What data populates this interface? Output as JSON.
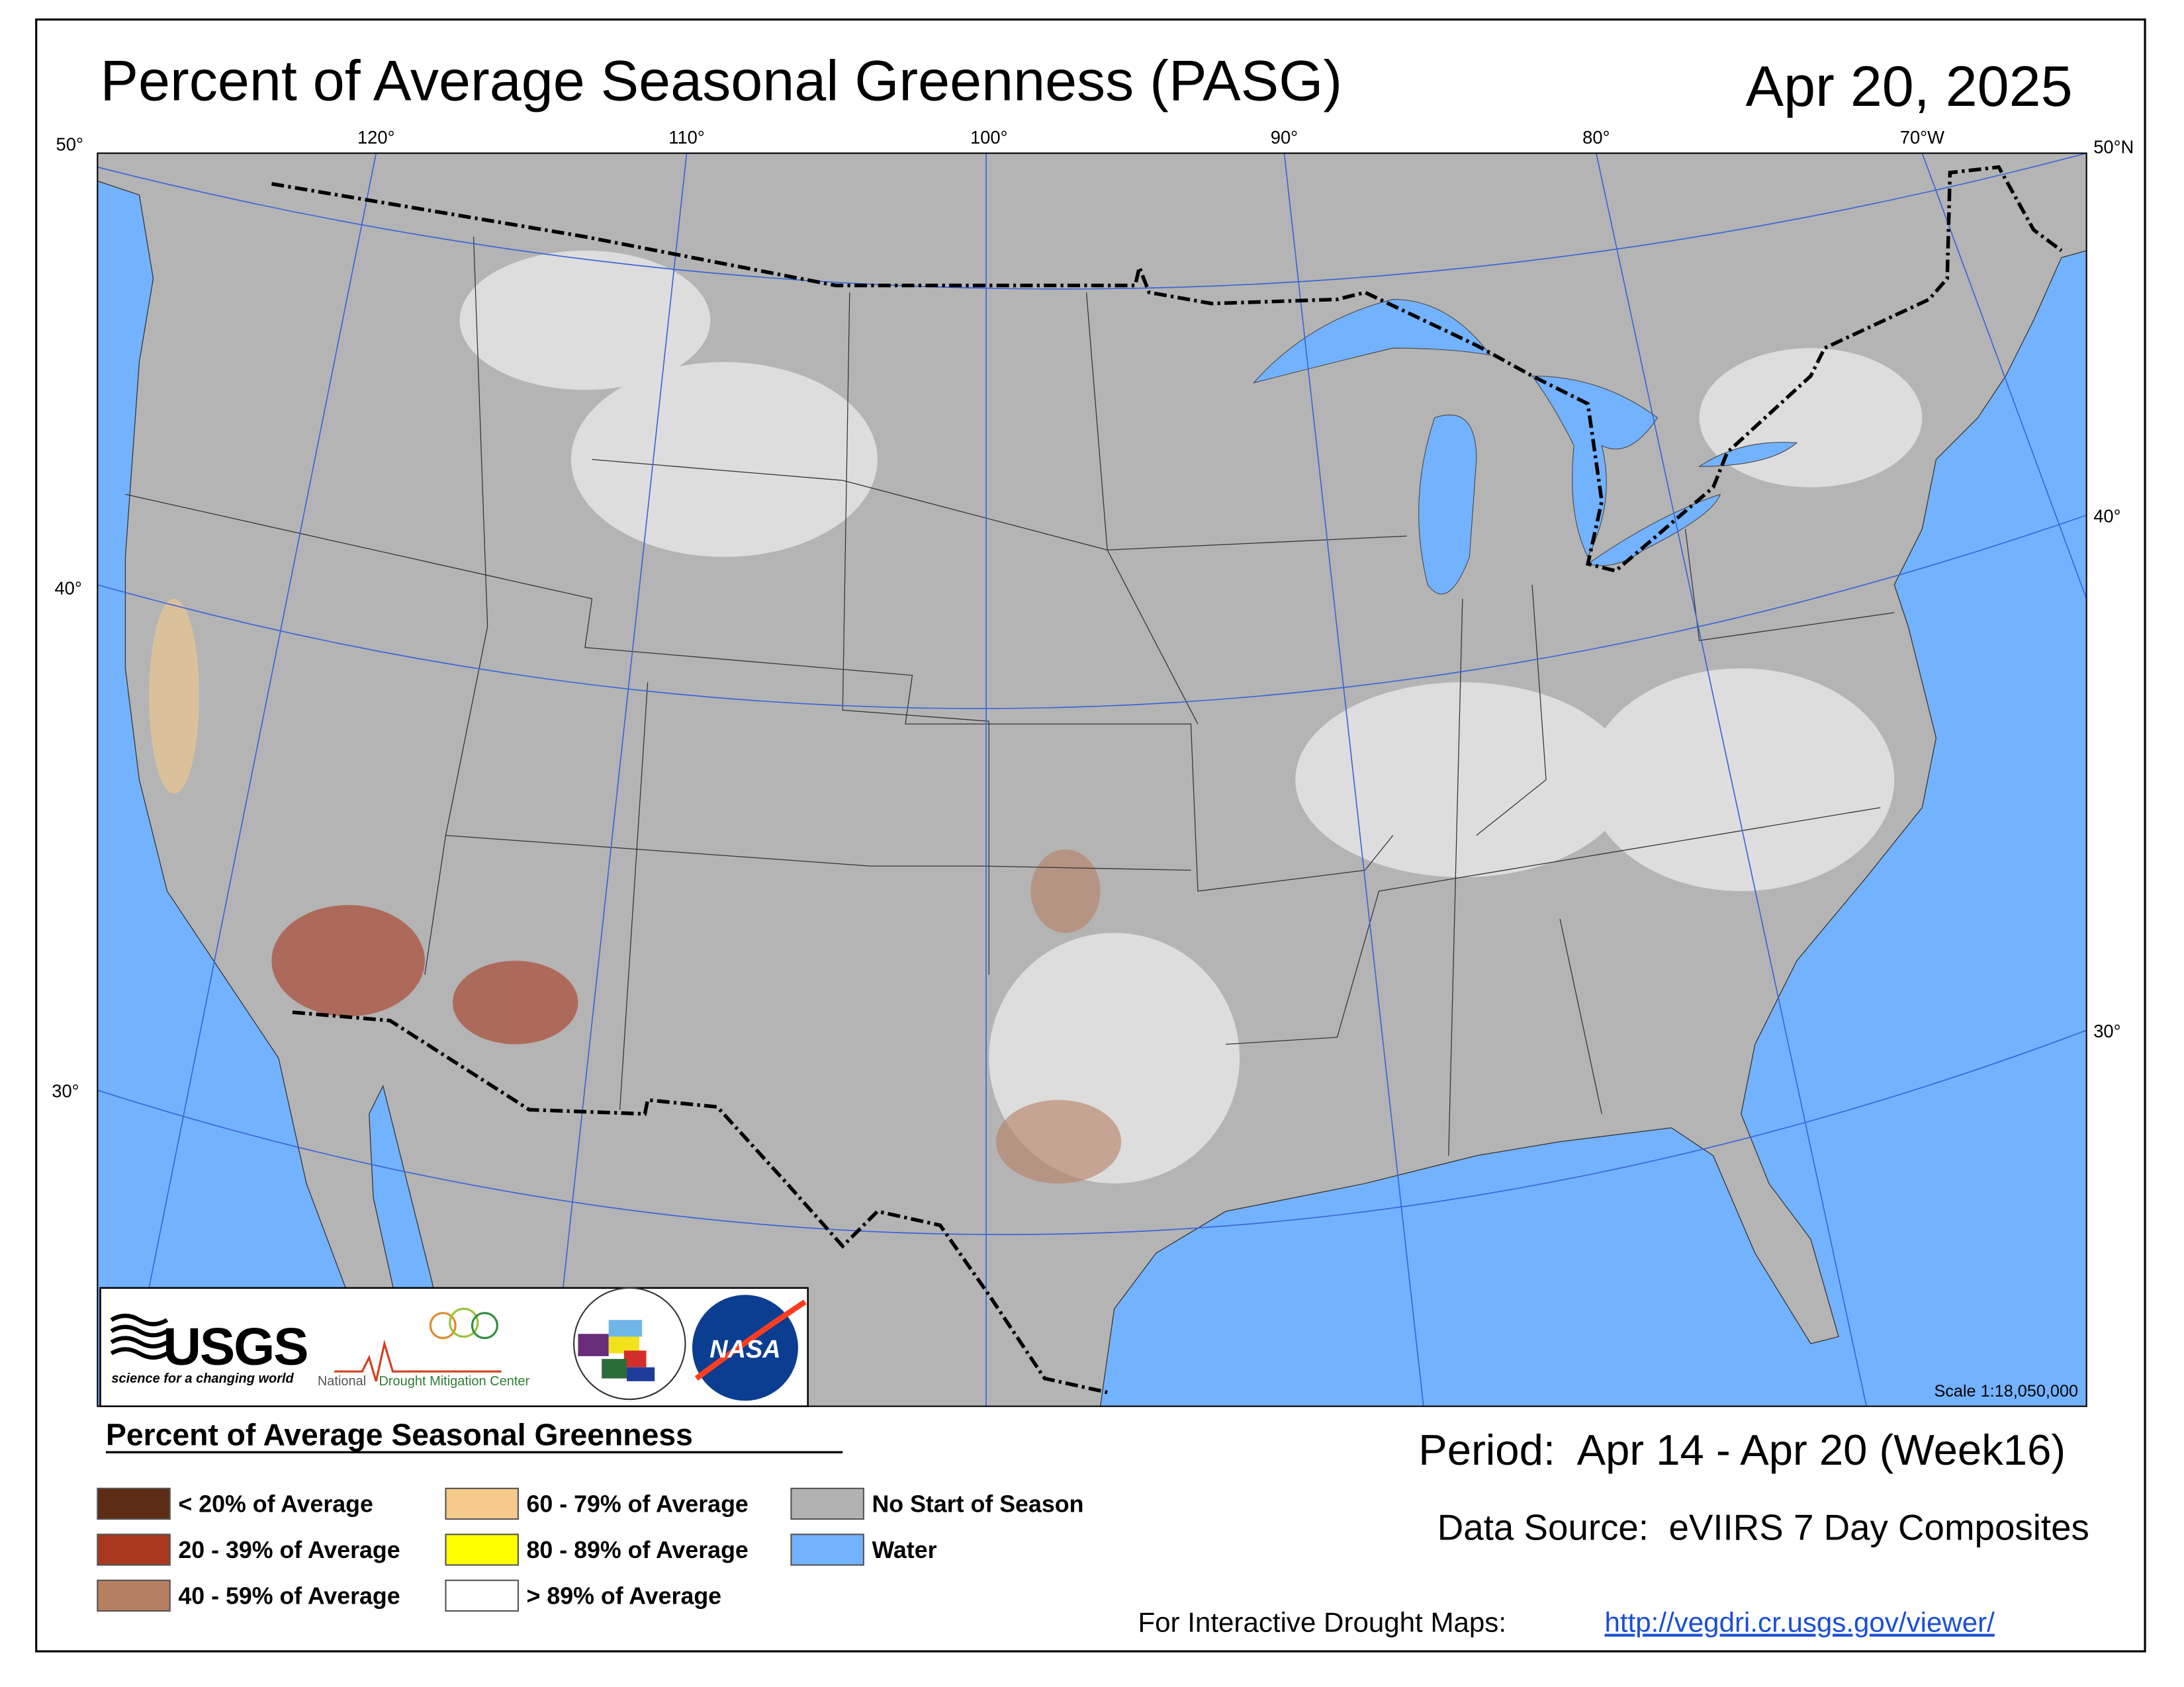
{
  "header": {
    "title": "Percent of Average Seasonal Greenness (PASG)",
    "date": "Apr 20, 2025"
  },
  "graticule": {
    "longitude_labels": [
      "120°",
      "110°",
      "100°",
      "90°",
      "80°",
      "70°W"
    ],
    "latitude_labels_left": [
      "50°",
      "40°",
      "30°"
    ],
    "latitude_labels_right": [
      "50°N",
      "40°",
      "30°"
    ]
  },
  "logos": {
    "usgs": "USGS",
    "usgs_tagline": "science for a changing world",
    "ndmc_prefix": "National",
    "ndmc": "Drought Mitigation Center",
    "nasa": "NASA"
  },
  "scale": "Scale 1:18,050,000",
  "legend": {
    "title": "Percent of Average Seasonal Greenness",
    "items": [
      {
        "label": "< 20% of Average",
        "color": "#5c2d14"
      },
      {
        "label": "20 - 39% of Average",
        "color": "#a8391f"
      },
      {
        "label": "40 - 59% of Average",
        "color": "#b77f62"
      },
      {
        "label": "60 - 79% of Average",
        "color": "#f5c98a"
      },
      {
        "label": "80 - 89% of Average",
        "color": "#ffff00"
      },
      {
        "label": "> 89% of Average",
        "color": "#ffffff"
      },
      {
        "label": "No Start of Season",
        "color": "#b2b2b2"
      },
      {
        "label": "Water",
        "color": "#73b2ff"
      }
    ]
  },
  "period": "Period:  Apr 14 - Apr 20 (Week16)",
  "data_source": "Data Source:  eVIIRS 7 Day Composites",
  "interactive": {
    "label": "For Interactive Drought Maps:",
    "link": "http://vegdri.cr.usgs.gov/viewer/"
  }
}
